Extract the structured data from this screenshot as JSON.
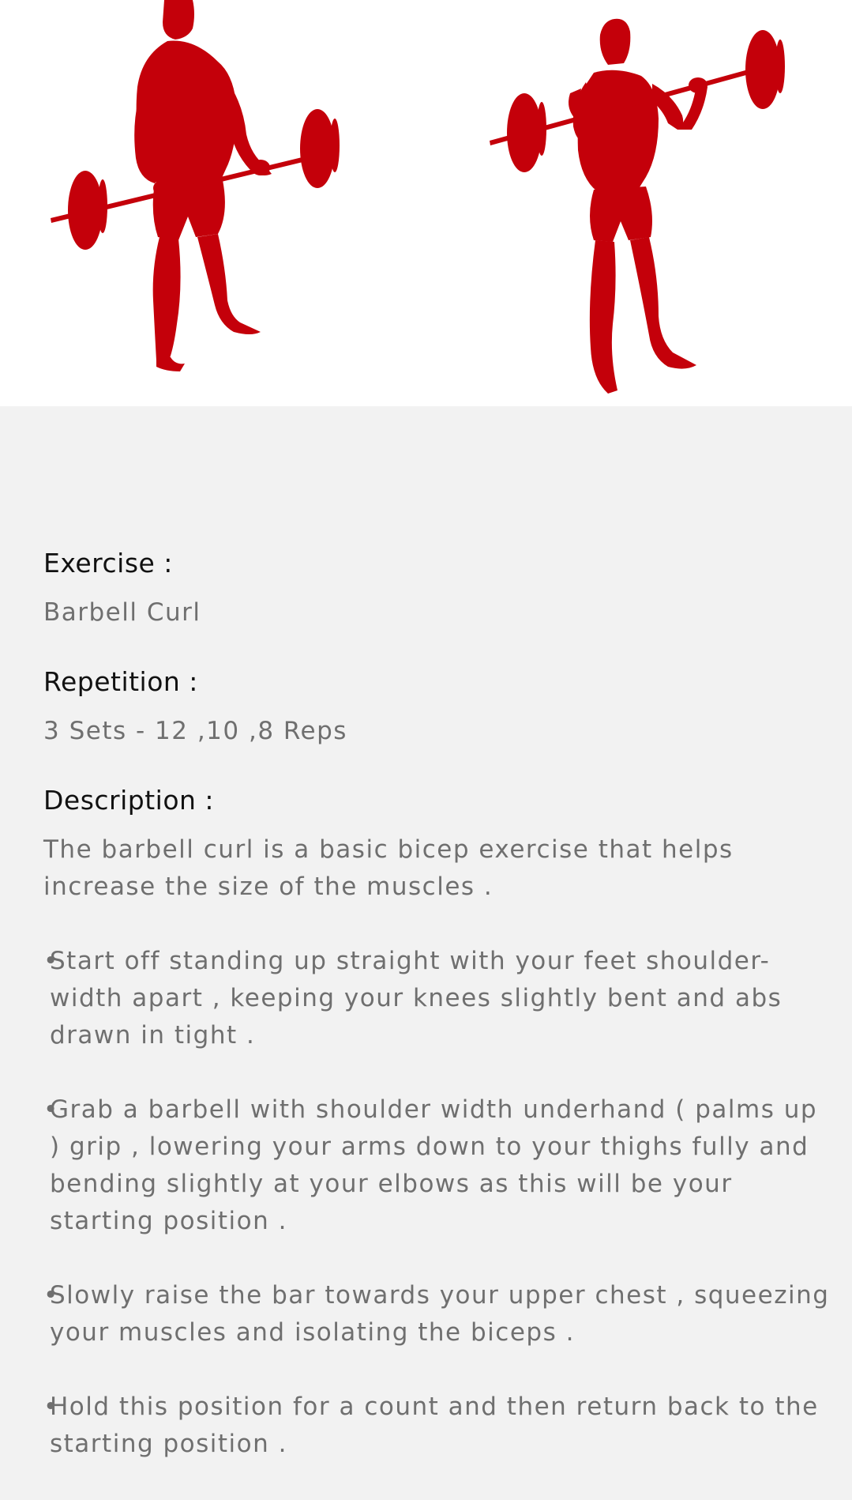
{
  "exercise": {
    "label": "Exercise :",
    "value": "Barbell Curl"
  },
  "repetition": {
    "label": "Repetition :",
    "value": "3 Sets - 12 ,10 ,8 Reps"
  },
  "description": {
    "label": "Description :",
    "intro": "The barbell curl is a basic bicep exercise that helps increase the size of the muscles .",
    "steps": [
      "Start off standing up straight with your feet shoulder-width apart , keeping your knees slightly bent and abs drawn in tight .",
      "Grab a barbell with shoulder width underhand ( palms up ) grip , lowering your arms down to your thighs fully and bending slightly at your elbows as this will be your starting position .",
      "Slowly raise the bar towards your upper chest , squeezing your muscles and isolating the biceps .",
      "Hold this position for a count and then return back to the starting position ."
    ],
    "bullet": "•"
  },
  "colors": {
    "figure": "#c4000a",
    "hero_background": "#ffffff",
    "page_background": "#f2f2f2",
    "label_text": "#111111",
    "value_text": "#6f6f6f"
  },
  "hero": {
    "left_figure": "barbell-curl-start-figure",
    "right_figure": "barbell-curl-top-figure"
  }
}
